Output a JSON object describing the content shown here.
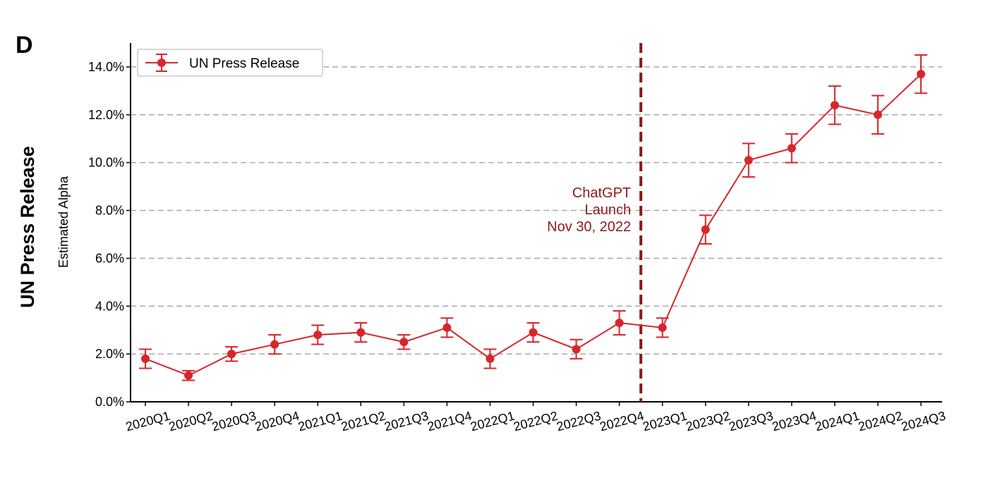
{
  "chart_data": {
    "type": "line",
    "panel_label": "D",
    "panel_title": "UN Press Release",
    "y_label": "Estimated Alpha",
    "categories": [
      "2020Q1",
      "2020Q2",
      "2020Q3",
      "2020Q4",
      "2021Q1",
      "2021Q2",
      "2021Q3",
      "2021Q4",
      "2022Q1",
      "2022Q2",
      "2022Q3",
      "2022Q4",
      "2023Q1",
      "2023Q2",
      "2023Q3",
      "2023Q4",
      "2024Q1",
      "2024Q2",
      "2024Q3"
    ],
    "series": [
      {
        "name": "UN Press Release",
        "color": "#d7262b",
        "values": [
          1.8,
          1.1,
          2.0,
          2.4,
          2.8,
          2.9,
          2.5,
          3.1,
          1.8,
          2.9,
          2.2,
          3.3,
          3.1,
          7.2,
          10.1,
          10.6,
          12.4,
          12.0,
          13.7
        ],
        "errors": [
          0.4,
          0.2,
          0.3,
          0.4,
          0.4,
          0.4,
          0.3,
          0.4,
          0.4,
          0.4,
          0.4,
          0.5,
          0.4,
          0.6,
          0.7,
          0.6,
          0.8,
          0.8,
          0.8
        ]
      }
    ],
    "ylim": [
      0,
      15
    ],
    "yticks": [
      {
        "value": 0,
        "label": "0.0%"
      },
      {
        "value": 2,
        "label": "2.0%"
      },
      {
        "value": 4,
        "label": "4.0%"
      },
      {
        "value": 6,
        "label": "6.0%"
      },
      {
        "value": 8,
        "label": "8.0%"
      },
      {
        "value": 10,
        "label": "10.0%"
      },
      {
        "value": 12,
        "label": "12.0%"
      },
      {
        "value": 14,
        "label": "14.0%"
      }
    ],
    "grid": true,
    "legend": "upper left",
    "annotation": {
      "lines": [
        "ChatGPT",
        "Launch",
        "Nov 30, 2022"
      ],
      "x": 11.5,
      "color": "#8b1a1a"
    }
  }
}
